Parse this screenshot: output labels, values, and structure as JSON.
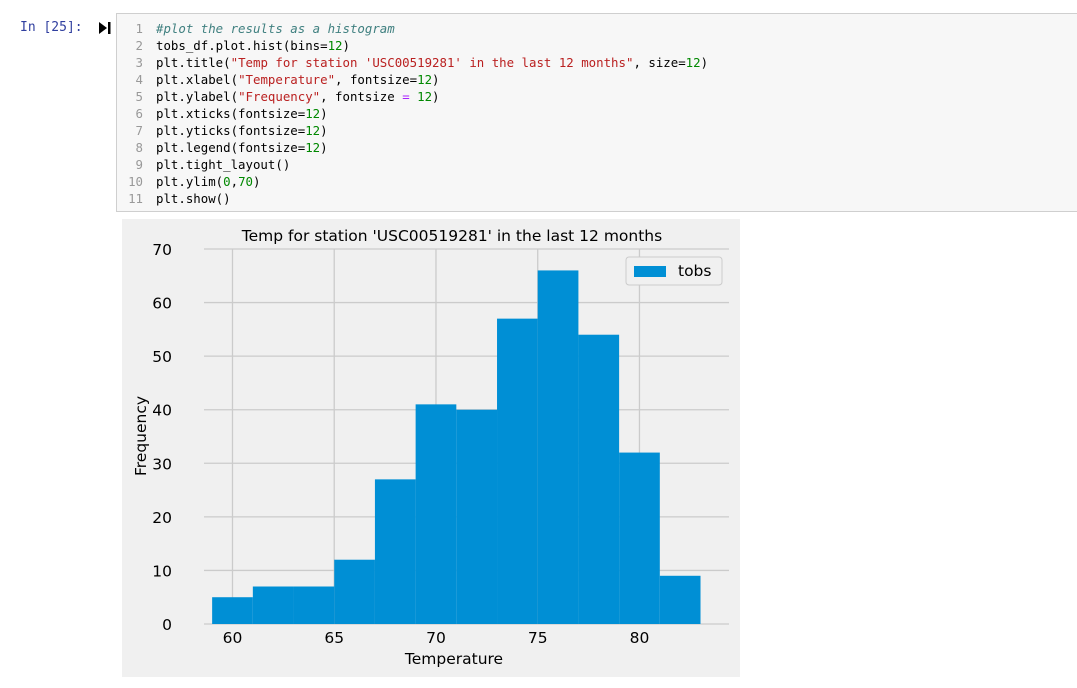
{
  "cell": {
    "prompt": "In [25]:",
    "lines": [
      {
        "n": "1",
        "segments": [
          {
            "t": "#plot the results as a histogram",
            "c": "comment"
          }
        ]
      },
      {
        "n": "2",
        "segments": [
          {
            "t": "tobs_df.plot.hist(bins=",
            "c": ""
          },
          {
            "t": "12",
            "c": "num"
          },
          {
            "t": ")",
            "c": ""
          }
        ]
      },
      {
        "n": "3",
        "segments": [
          {
            "t": "plt.title(",
            "c": ""
          },
          {
            "t": "\"Temp for station 'USC00519281' in the last 12 months\"",
            "c": "str"
          },
          {
            "t": ", size=",
            "c": ""
          },
          {
            "t": "12",
            "c": "num"
          },
          {
            "t": ")",
            "c": ""
          }
        ]
      },
      {
        "n": "4",
        "segments": [
          {
            "t": "plt.xlabel(",
            "c": ""
          },
          {
            "t": "\"Temperature\"",
            "c": "str"
          },
          {
            "t": ", fontsize=",
            "c": ""
          },
          {
            "t": "12",
            "c": "num"
          },
          {
            "t": ")",
            "c": ""
          }
        ]
      },
      {
        "n": "5",
        "segments": [
          {
            "t": "plt.ylabel(",
            "c": ""
          },
          {
            "t": "\"Frequency\"",
            "c": "str"
          },
          {
            "t": ", fontsize ",
            "c": ""
          },
          {
            "t": "=",
            "c": "op"
          },
          {
            "t": " ",
            "c": ""
          },
          {
            "t": "12",
            "c": "num"
          },
          {
            "t": ")",
            "c": ""
          }
        ]
      },
      {
        "n": "6",
        "segments": [
          {
            "t": "plt.xticks(fontsize=",
            "c": ""
          },
          {
            "t": "12",
            "c": "num"
          },
          {
            "t": ")",
            "c": ""
          }
        ]
      },
      {
        "n": "7",
        "segments": [
          {
            "t": "plt.yticks(fontsize=",
            "c": ""
          },
          {
            "t": "12",
            "c": "num"
          },
          {
            "t": ")",
            "c": ""
          }
        ]
      },
      {
        "n": "8",
        "segments": [
          {
            "t": "plt.legend(fontsize=",
            "c": ""
          },
          {
            "t": "12",
            "c": "num"
          },
          {
            "t": ")",
            "c": ""
          }
        ]
      },
      {
        "n": "9",
        "segments": [
          {
            "t": "plt.tight_layout()",
            "c": ""
          }
        ]
      },
      {
        "n": "10",
        "segments": [
          {
            "t": "plt.ylim(",
            "c": ""
          },
          {
            "t": "0",
            "c": "num"
          },
          {
            "t": ",",
            "c": ""
          },
          {
            "t": "70",
            "c": "num"
          },
          {
            "t": ")",
            "c": ""
          }
        ]
      },
      {
        "n": "11",
        "segments": [
          {
            "t": "plt.show()",
            "c": ""
          }
        ]
      }
    ]
  },
  "colors": {
    "bar": "#008fd5",
    "plot_bg": "#f0f0f0",
    "grid": "#cbcbcb",
    "prompt": "#303f9f"
  },
  "chart_data": {
    "type": "bar",
    "title": "Temp for station 'USC00519281' in the last 12 months",
    "xlabel": "Temperature",
    "ylabel": "Frequency",
    "xlim": [
      58.6,
      84.4
    ],
    "ylim": [
      0,
      70
    ],
    "xticks": [
      60,
      65,
      70,
      75,
      80
    ],
    "yticks": [
      0,
      10,
      20,
      30,
      40,
      50,
      60,
      70
    ],
    "grid": true,
    "legend": {
      "position": "top-right",
      "entries": [
        "tobs"
      ]
    },
    "series": [
      {
        "name": "tobs",
        "bins": [
          {
            "x0": 59.0,
            "x1": 61.0,
            "value": 5
          },
          {
            "x0": 61.0,
            "x1": 63.0,
            "value": 7
          },
          {
            "x0": 63.0,
            "x1": 65.0,
            "value": 7
          },
          {
            "x0": 65.0,
            "x1": 67.0,
            "value": 12
          },
          {
            "x0": 67.0,
            "x1": 69.0,
            "value": 27
          },
          {
            "x0": 69.0,
            "x1": 71.0,
            "value": 41
          },
          {
            "x0": 71.0,
            "x1": 73.0,
            "value": 40
          },
          {
            "x0": 73.0,
            "x1": 75.0,
            "value": 57
          },
          {
            "x0": 75.0,
            "x1": 77.0,
            "value": 66
          },
          {
            "x0": 77.0,
            "x1": 79.0,
            "value": 54
          },
          {
            "x0": 79.0,
            "x1": 81.0,
            "value": 32
          },
          {
            "x0": 81.0,
            "x1": 83.0,
            "value": 9
          }
        ]
      }
    ]
  }
}
